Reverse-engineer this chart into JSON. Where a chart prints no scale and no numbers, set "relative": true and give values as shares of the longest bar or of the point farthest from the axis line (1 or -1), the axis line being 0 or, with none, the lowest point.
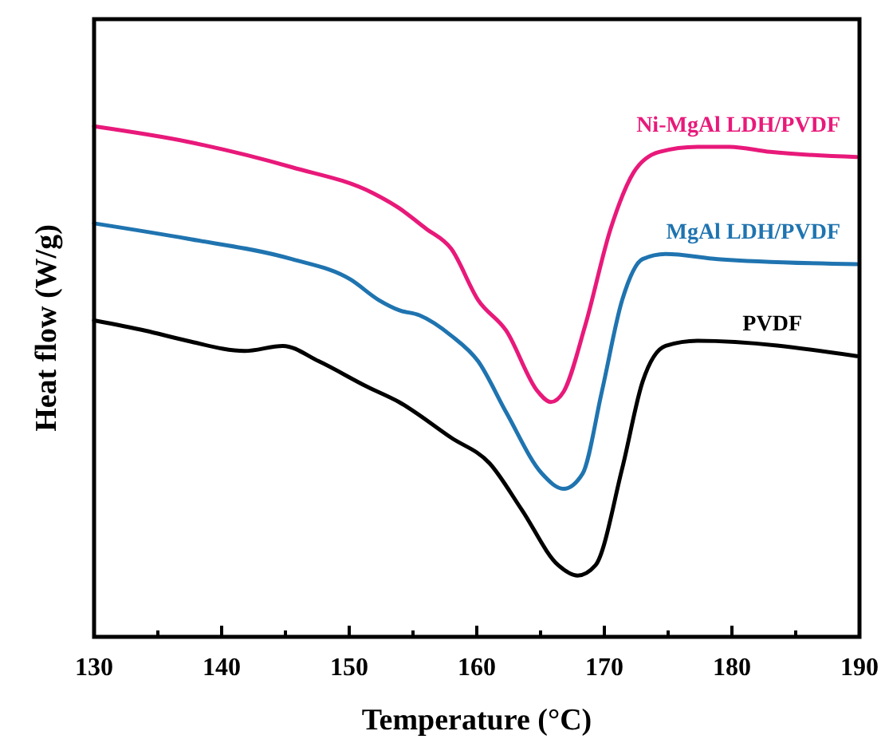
{
  "chart_data": {
    "type": "line",
    "relative": true,
    "xlabel": "Temperature (°C)",
    "ylabel": "Heat flow (W/g)",
    "xlim": [
      130,
      190
    ],
    "xticks": [
      130,
      {
        "value": 135,
        "label": null
      },
      140,
      {
        "value": 145,
        "label": null
      },
      150,
      {
        "value": 155,
        "label": null
      },
      160,
      {
        "value": 165,
        "label": null
      },
      170,
      {
        "value": 175,
        "label": null
      },
      180,
      {
        "value": 185,
        "label": null
      },
      190
    ],
    "tick_labels": "x",
    "grid": false,
    "marker": "none",
    "line_style": "solid",
    "series": [
      {
        "name": "Ni-MgAl LDH/PVDF",
        "color": "#e8197a",
        "x": [
          130,
          137.3,
          145.5,
          151.8,
          153.9,
          156,
          158,
          160.1,
          162.3,
          164.8,
          165.8,
          166.8,
          168.5,
          170.5,
          172.3,
          174.3,
          177.3,
          179.8,
          183,
          189.8
        ],
        "values": [
          1.0,
          0.97,
          0.92,
          0.87,
          0.84,
          0.8,
          0.76,
          0.66,
          0.6,
          0.48,
          0.46,
          0.48,
          0.61,
          0.8,
          0.91,
          0.95,
          0.96,
          0.96,
          0.95,
          0.94
        ]
      },
      {
        "name": "MgAl LDH/PVDF",
        "color": "#1f74b0",
        "x": [
          130,
          137.3,
          145.5,
          150.1,
          152.3,
          153.9,
          155.5,
          158,
          160.1,
          162.3,
          165.1,
          166.8,
          168.3,
          169.8,
          171.4,
          173,
          174.8,
          178.9,
          189.8
        ],
        "values": [
          0.81,
          0.78,
          0.74,
          0.7,
          0.66,
          0.64,
          0.63,
          0.59,
          0.54,
          0.44,
          0.32,
          0.29,
          0.32,
          0.48,
          0.66,
          0.74,
          0.75,
          0.74,
          0.73
        ]
      },
      {
        "name": "PVDF",
        "color": "#000000",
        "x": [
          130,
          134,
          137.3,
          141.8,
          144.8,
          147.6,
          151.4,
          153.9,
          158,
          161,
          163.5,
          166.4,
          167.9,
          169.3,
          171.4,
          173,
          174.8,
          177.3,
          189.8
        ],
        "values": [
          0.62,
          0.6,
          0.58,
          0.56,
          0.57,
          0.54,
          0.49,
          0.46,
          0.39,
          0.34,
          0.25,
          0.14,
          0.12,
          0.14,
          0.33,
          0.5,
          0.57,
          0.58,
          0.55
        ]
      }
    ]
  }
}
